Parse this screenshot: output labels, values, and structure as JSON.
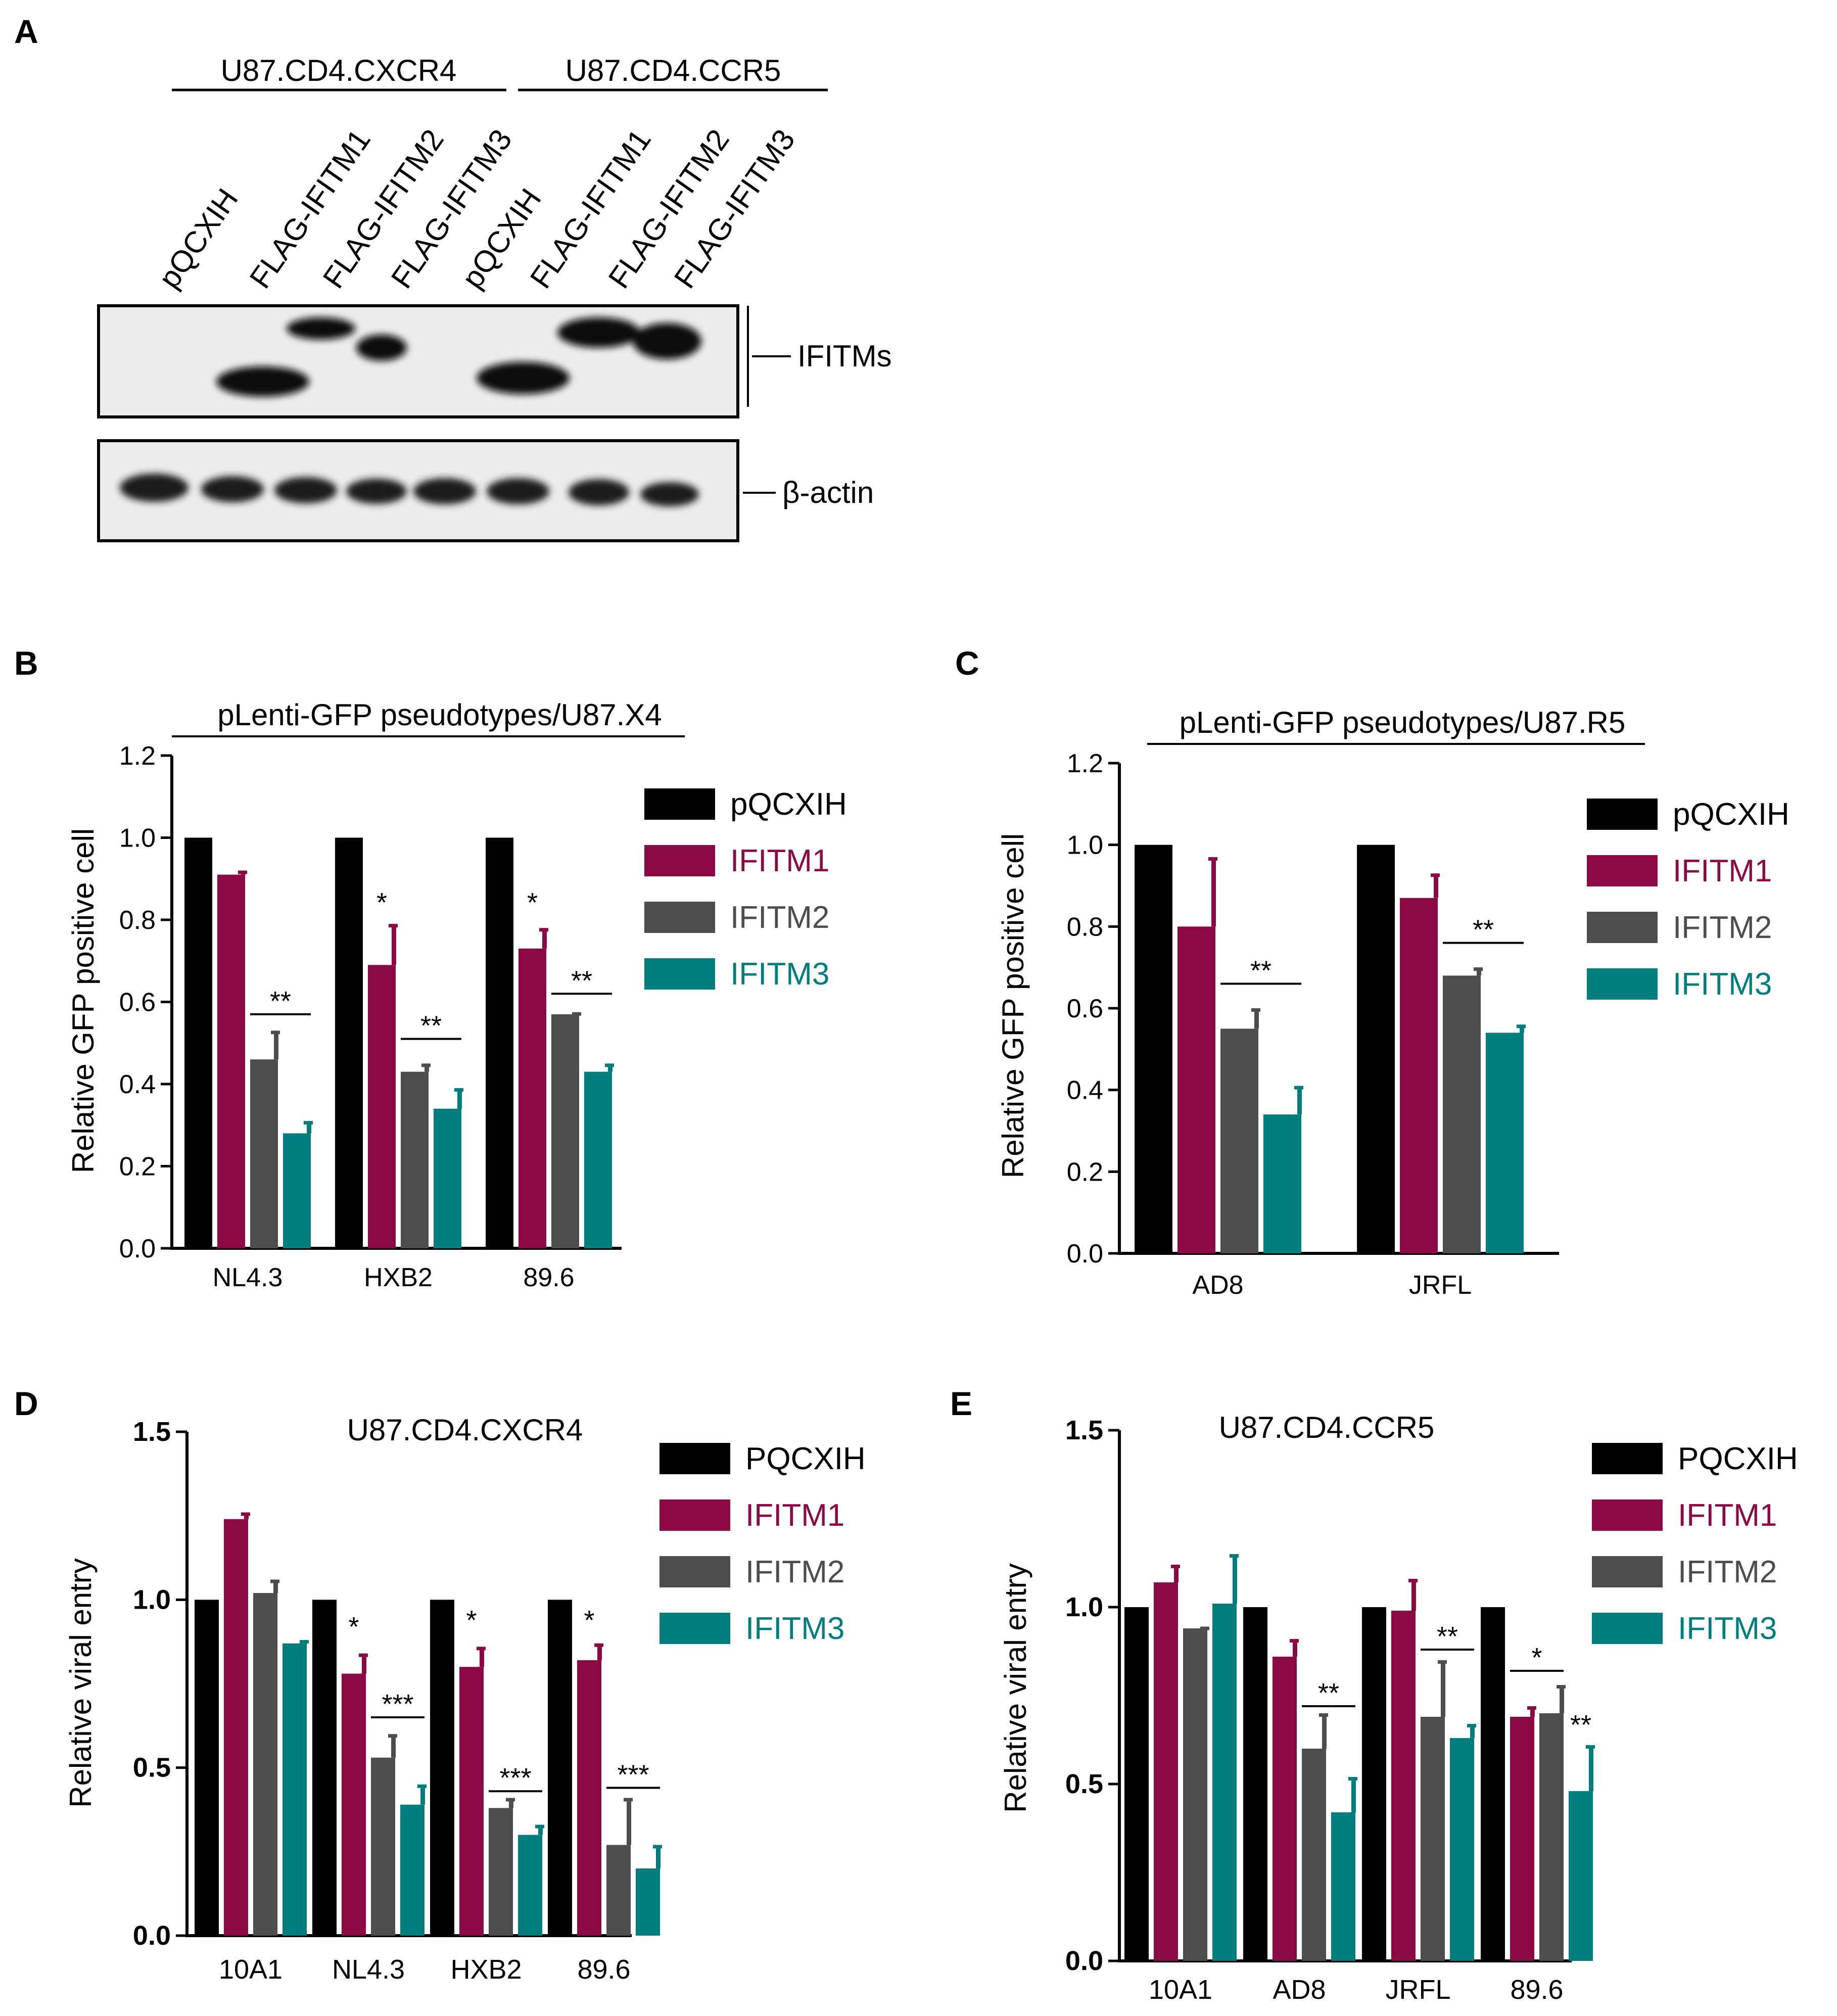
{
  "colors": {
    "pQCXIH": "#000000",
    "IFITM1": "#8b0a45",
    "IFITM2": "#4d4d4d",
    "IFITM3": "#007d7d"
  },
  "panel_a": {
    "letter": "A",
    "group_labels": [
      "U87.CD4.CXCR4",
      "U87.CD4.CCR5"
    ],
    "lanes": [
      "pQCXIH",
      "FLAG-IFITM1",
      "FLAG-IFITM2",
      "FLAG-IFITM3",
      "pQCXIH",
      "FLAG-IFITM1",
      "FLAG-IFITM2",
      "FLAG-IFITM3"
    ],
    "blot_labels": [
      "IFITMs",
      "β-actin"
    ]
  },
  "chart_data": [
    {
      "panel": "B",
      "type": "bar",
      "title": "pLenti-GFP pseudotypes/U87.X4",
      "ylabel": "Relative GFP positive cell",
      "ylim": [
        0,
        1.2
      ],
      "yticks": [
        "0.0",
        "0.2",
        "0.4",
        "0.6",
        "0.8",
        "1.0",
        "1.2"
      ],
      "categories": [
        "NL4.3",
        "HXB2",
        "89.6"
      ],
      "series": [
        {
          "name": "pQCXIH",
          "values": [
            1.0,
            1.0,
            1.0
          ],
          "errors": [
            0,
            0,
            0
          ]
        },
        {
          "name": "IFITM1",
          "values": [
            0.91,
            0.69,
            0.73
          ],
          "errors": [
            0.01,
            0.1,
            0.05
          ]
        },
        {
          "name": "IFITM2",
          "values": [
            0.46,
            0.43,
            0.57
          ],
          "errors": [
            0.07,
            0.02,
            0.005
          ]
        },
        {
          "name": "IFITM3",
          "values": [
            0.28,
            0.34,
            0.43
          ],
          "errors": [
            0.03,
            0.05,
            0.02
          ]
        }
      ],
      "annotations": [
        {
          "category": 0,
          "series": [
            2,
            3
          ],
          "text": "**",
          "y": 0.57
        },
        {
          "category": 1,
          "series": [
            1
          ],
          "text": "*",
          "y": 0.81
        },
        {
          "category": 1,
          "series": [
            2,
            3
          ],
          "text": "**",
          "y": 0.51
        },
        {
          "category": 2,
          "series": [
            1
          ],
          "text": "*",
          "y": 0.81
        },
        {
          "category": 2,
          "series": [
            2,
            3
          ],
          "text": "**",
          "y": 0.62
        }
      ],
      "legend": "right"
    },
    {
      "panel": "C",
      "type": "bar",
      "title": "pLenti-GFP pseudotypes/U87.R5",
      "ylabel": "Relative GFP positive cell",
      "ylim": [
        0,
        1.2
      ],
      "yticks": [
        "0.0",
        "0.2",
        "0.4",
        "0.6",
        "0.8",
        "1.0",
        "1.2"
      ],
      "categories": [
        "AD8",
        "JRFL"
      ],
      "series": [
        {
          "name": "pQCXIH",
          "values": [
            1.0,
            1.0
          ],
          "errors": [
            0,
            0
          ]
        },
        {
          "name": "IFITM1",
          "values": [
            0.8,
            0.87
          ],
          "errors": [
            0.17,
            0.06
          ]
        },
        {
          "name": "IFITM2",
          "values": [
            0.55,
            0.68
          ],
          "errors": [
            0.05,
            0.02
          ]
        },
        {
          "name": "IFITM3",
          "values": [
            0.34,
            0.54
          ],
          "errors": [
            0.07,
            0.02
          ]
        }
      ],
      "annotations": [
        {
          "category": 0,
          "series": [
            2,
            3
          ],
          "text": "**",
          "y": 0.66
        },
        {
          "category": 1,
          "series": [
            2,
            3
          ],
          "text": "**",
          "y": 0.76
        }
      ],
      "legend": "right"
    },
    {
      "panel": "D",
      "type": "bar",
      "title": "U87.CD4.CXCR4",
      "ylabel": "Relative viral entry",
      "ylim": [
        0,
        1.5
      ],
      "yticks": [
        "0.0",
        "0.5",
        "1.0",
        "1.5"
      ],
      "categories": [
        "10A1",
        "NL4.3",
        "HXB2",
        "89.6"
      ],
      "series": [
        {
          "name": "PQCXIH",
          "values": [
            1.0,
            1.0,
            1.0,
            1.0
          ],
          "errors": [
            0,
            0,
            0,
            0
          ]
        },
        {
          "name": "IFITM1",
          "values": [
            1.24,
            0.78,
            0.8,
            0.82
          ],
          "errors": [
            0.02,
            0.06,
            0.06,
            0.05
          ]
        },
        {
          "name": "IFITM2",
          "values": [
            1.02,
            0.53,
            0.38,
            0.27
          ],
          "errors": [
            0.04,
            0.07,
            0.03,
            0.14
          ]
        },
        {
          "name": "IFITM3",
          "values": [
            0.87,
            0.39,
            0.3,
            0.2
          ],
          "errors": [
            0.01,
            0.06,
            0.03,
            0.07
          ]
        }
      ],
      "annotations": [
        {
          "category": 1,
          "series": [
            1
          ],
          "text": "*",
          "y": 0.88
        },
        {
          "category": 1,
          "series": [
            2,
            3
          ],
          "text": "***",
          "y": 0.65
        },
        {
          "category": 2,
          "series": [
            1
          ],
          "text": "*",
          "y": 0.9
        },
        {
          "category": 2,
          "series": [
            2,
            3
          ],
          "text": "***",
          "y": 0.43
        },
        {
          "category": 3,
          "series": [
            1
          ],
          "text": "*",
          "y": 0.9
        },
        {
          "category": 3,
          "series": [
            2,
            3
          ],
          "text": "***",
          "y": 0.44
        }
      ],
      "legend": "right"
    },
    {
      "panel": "E",
      "type": "bar",
      "title": "U87.CD4.CCR5",
      "ylabel": "Relative viral entry",
      "ylim": [
        0,
        1.5
      ],
      "yticks": [
        "0.0",
        "0.5",
        "1.0",
        "1.5"
      ],
      "categories": [
        "10A1",
        "AD8",
        "JRFL",
        "89.6"
      ],
      "series": [
        {
          "name": "PQCXIH",
          "values": [
            1.0,
            1.0,
            1.0,
            1.0
          ],
          "errors": [
            0,
            0,
            0,
            0
          ]
        },
        {
          "name": "IFITM1",
          "values": [
            1.07,
            0.86,
            0.99,
            0.69
          ],
          "errors": [
            0.05,
            0.05,
            0.09,
            0.03
          ]
        },
        {
          "name": "IFITM2",
          "values": [
            0.94,
            0.6,
            0.69,
            0.7
          ],
          "errors": [
            0.005,
            0.1,
            0.16,
            0.08
          ]
        },
        {
          "name": "IFITM3",
          "values": [
            1.01,
            0.42,
            0.63,
            0.48
          ],
          "errors": [
            0.14,
            0.1,
            0.04,
            0.13
          ]
        }
      ],
      "annotations": [
        {
          "category": 1,
          "series": [
            2,
            3
          ],
          "text": "**",
          "y": 0.72
        },
        {
          "category": 2,
          "series": [
            2,
            3
          ],
          "text": "**",
          "y": 0.88
        },
        {
          "category": 3,
          "series": [
            1,
            2
          ],
          "text": "*",
          "y": 0.82
        },
        {
          "category": 3,
          "series": [
            3
          ],
          "text": "**",
          "y": 0.63
        }
      ],
      "legend": "right"
    }
  ]
}
